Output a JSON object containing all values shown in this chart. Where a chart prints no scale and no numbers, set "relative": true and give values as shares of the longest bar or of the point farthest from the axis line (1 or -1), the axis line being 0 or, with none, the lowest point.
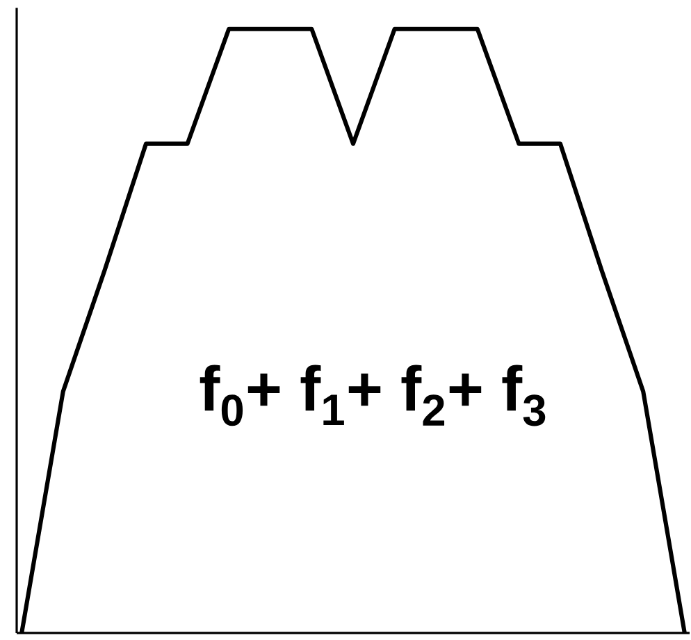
{
  "chart_data": {
    "type": "line",
    "relative": true,
    "marker": "none",
    "line_style": "solid",
    "categories": [
      null,
      null,
      null,
      null,
      null,
      null,
      null,
      null,
      null,
      null,
      null,
      null,
      null,
      null,
      null,
      null,
      null
    ],
    "series": [
      {
        "color": "#000000",
        "values": [
          0,
          0.4,
          0.6,
          0.81,
          0.81,
          1,
          1,
          1,
          0.81,
          1,
          1,
          1,
          0.81,
          0.81,
          0.6,
          0.4,
          0
        ]
      }
    ],
    "annotations": [
      "f$_{0}$+ f$_{1}$+ f$_{2}$+ f$_{3}$"
    ]
  }
}
